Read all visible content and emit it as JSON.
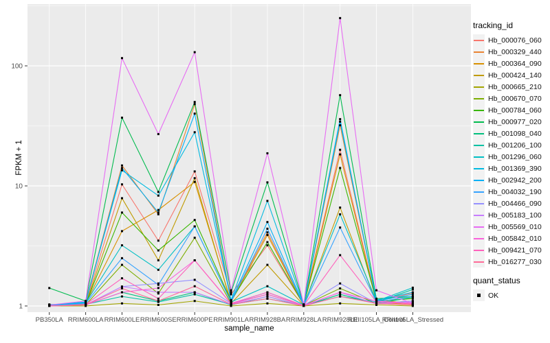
{
  "figure": {
    "background": "#FFFFFF",
    "panel_background": "#EBEBEB",
    "grid_color": "#FFFFFF",
    "axis_text_color": "#4D4D4D",
    "axis_title_color": "#000000",
    "tick_color": "#333333",
    "point_color": "#000000",
    "legend_key_fill": "#F2F2F2"
  },
  "chart_data": {
    "type": "line",
    "title": "",
    "xlabel": "sample_name",
    "ylabel": "FPKM + 1",
    "y_scale": "log10",
    "y_ticks": [
      "1",
      "10",
      "100"
    ],
    "y_tick_values": [
      1,
      10,
      100
    ],
    "y_minor_values": [
      3.162,
      31.623,
      316.23
    ],
    "categories": [
      "PB350LA",
      "RRIM600LA",
      "RRIM600LE",
      "RRIM600SE",
      "RRIM600PE",
      "RRIM901LA",
      "RRIM928BA",
      "RRIM928LA",
      "RRIM928LE",
      "RRII105LA_Control",
      "RRII105LA_Stressed"
    ],
    "series": [
      {
        "name": "Hb_000076_060",
        "color": "#F8766D",
        "values": [
          1.02,
          1.05,
          10.3,
          3.5,
          13.2,
          1.25,
          3.2,
          1.02,
          20.0,
          1.1,
          1.28
        ]
      },
      {
        "name": "Hb_000329_440",
        "color": "#EA8331",
        "values": [
          1.0,
          1.08,
          14.8,
          5.8,
          48.0,
          1.1,
          4.1,
          1.02,
          32.0,
          1.12,
          1.05
        ]
      },
      {
        "name": "Hb_000364_090",
        "color": "#D89000",
        "values": [
          1.0,
          1.05,
          4.2,
          6.3,
          10.8,
          1.08,
          3.9,
          1.01,
          18.3,
          1.08,
          1.02
        ]
      },
      {
        "name": "Hb_000424_140",
        "color": "#C09B00",
        "values": [
          1.0,
          1.03,
          7.9,
          2.4,
          11.6,
          1.05,
          2.2,
          1.01,
          6.6,
          1.05,
          1.02
        ]
      },
      {
        "name": "Hb_000665_210",
        "color": "#A3A500",
        "values": [
          1.0,
          1.0,
          1.05,
          1.02,
          1.1,
          1.0,
          1.05,
          1.0,
          1.05,
          1.02,
          1.0
        ]
      },
      {
        "name": "Hb_000670_070",
        "color": "#7CAE00",
        "values": [
          1.01,
          1.02,
          2.2,
          1.27,
          3.7,
          1.05,
          1.3,
          1.01,
          1.4,
          1.05,
          1.1
        ]
      },
      {
        "name": "Hb_000784_060",
        "color": "#39B600",
        "values": [
          1.02,
          1.04,
          6.0,
          2.9,
          5.2,
          1.1,
          3.4,
          1.02,
          14.1,
          1.1,
          1.15
        ]
      },
      {
        "name": "Hb_000977_020",
        "color": "#00BB4E",
        "values": [
          1.41,
          1.1,
          37.0,
          8.9,
          50.0,
          1.3,
          10.7,
          1.03,
          57.0,
          1.15,
          1.2
        ]
      },
      {
        "name": "Hb_001098_040",
        "color": "#00BF7D",
        "values": [
          1.02,
          1.02,
          1.3,
          1.1,
          1.3,
          1.02,
          1.2,
          1.0,
          1.25,
          1.05,
          1.18
        ]
      },
      {
        "name": "Hb_001206_100",
        "color": "#00C1A3",
        "values": [
          1.03,
          1.03,
          1.2,
          1.08,
          1.25,
          1.03,
          1.15,
          1.01,
          1.2,
          1.08,
          1.37
        ]
      },
      {
        "name": "Hb_001296_060",
        "color": "#00BFC4",
        "values": [
          1.02,
          1.06,
          3.2,
          2.0,
          4.6,
          1.08,
          1.46,
          1.02,
          5.8,
          1.1,
          1.42
        ]
      },
      {
        "name": "Hb_001369_390",
        "color": "#00BAE0",
        "values": [
          1.02,
          1.08,
          13.5,
          8.3,
          28.0,
          1.12,
          7.5,
          1.02,
          34.3,
          1.12,
          1.3
        ]
      },
      {
        "name": "Hb_002942_200",
        "color": "#00B0F6",
        "values": [
          1.01,
          1.07,
          14.1,
          6.0,
          40.0,
          1.1,
          5.0,
          1.02,
          36.0,
          1.1,
          1.25
        ]
      },
      {
        "name": "Hb_004032_190",
        "color": "#35A2FF",
        "values": [
          1.01,
          1.05,
          2.5,
          1.5,
          4.6,
          1.08,
          4.4,
          1.01,
          4.5,
          1.08,
          1.2
        ]
      },
      {
        "name": "Hb_004466_090",
        "color": "#9590FF",
        "values": [
          1.0,
          1.02,
          1.45,
          1.54,
          1.65,
          1.05,
          1.25,
          1.01,
          1.54,
          1.05,
          1.1
        ]
      },
      {
        "name": "Hb_005183_100",
        "color": "#C77CFF",
        "values": [
          1.0,
          1.02,
          1.45,
          1.3,
          1.3,
          1.03,
          1.2,
          1.0,
          1.3,
          1.04,
          1.08
        ]
      },
      {
        "name": "Hb_005569_010",
        "color": "#E76BF3",
        "values": [
          1.02,
          1.1,
          116.0,
          27.0,
          130.0,
          1.35,
          18.7,
          1.03,
          250.0,
          1.35,
          1.05
        ]
      },
      {
        "name": "Hb_005842_010",
        "color": "#FA62DB",
        "values": [
          1.0,
          1.02,
          1.3,
          1.41,
          2.4,
          1.05,
          1.3,
          1.01,
          1.3,
          1.1,
          1.05
        ]
      },
      {
        "name": "Hb_009421_070",
        "color": "#FF62BC",
        "values": [
          1.0,
          1.03,
          1.7,
          1.15,
          2.4,
          1.04,
          1.25,
          1.01,
          2.65,
          1.08,
          1.04
        ]
      },
      {
        "name": "Hb_016277_030",
        "color": "#FF6A98",
        "values": [
          1.0,
          1.02,
          1.4,
          1.1,
          1.46,
          1.03,
          1.15,
          1.0,
          1.2,
          1.05,
          1.02
        ]
      }
    ],
    "legends": {
      "tracking_id_title": "tracking_id",
      "quant_status_title": "quant_status",
      "quant_status_items": [
        {
          "label": "OK",
          "shape": "square",
          "color": "#000000"
        }
      ]
    }
  }
}
